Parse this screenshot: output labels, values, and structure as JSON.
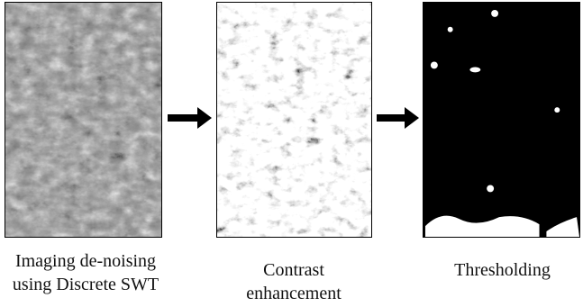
{
  "stages": [
    {
      "id": "denoise",
      "caption_lines": [
        "Imaging de-noising",
        "using Discrete SWT"
      ],
      "style": "grayscale"
    },
    {
      "id": "contrast",
      "caption_lines": [
        "Contrast",
        "enhancement"
      ],
      "style": "enhanced"
    },
    {
      "id": "threshold",
      "caption_lines": [
        "Thresholding"
      ],
      "style": "binary"
    }
  ],
  "arrow_color": "#000000",
  "colors": {
    "background": "#ffffff",
    "panel_border": "#000000",
    "binary_foreground": "#ffffff",
    "binary_background": "#000000"
  }
}
